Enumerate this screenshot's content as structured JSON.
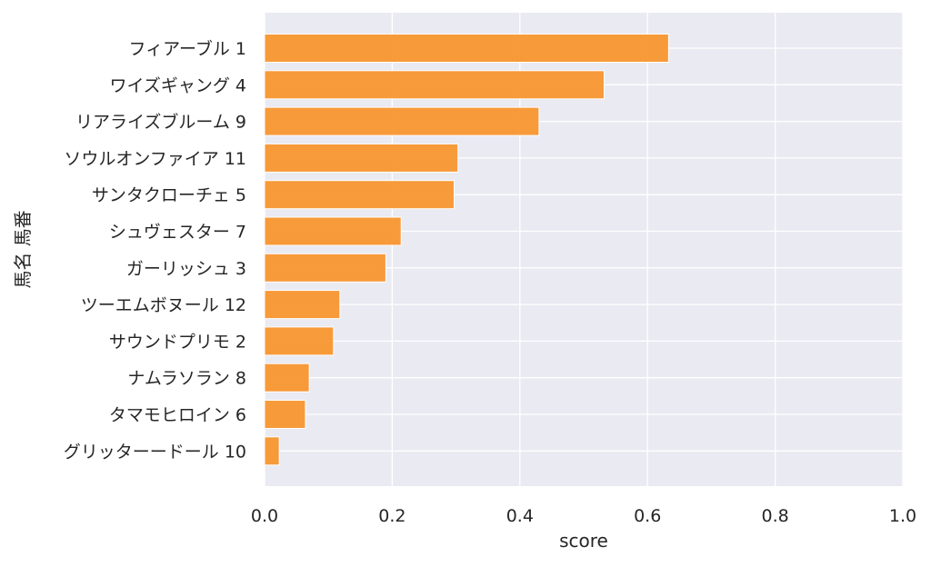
{
  "chart_data": {
    "type": "bar",
    "orientation": "horizontal",
    "categories": [
      "フィアーブル 1",
      "ワイズギャング 4",
      "リアライズブルーム 9",
      "ソウルオンファイア 11",
      "サンタクローチェ 5",
      "シュヴェスター 7",
      "ガーリッシュ 3",
      "ツーエムボヌール 12",
      "サウンドプリモ 2",
      "ナムラソラン 8",
      "タマモヒロイン 6",
      "グリッターードール 10"
    ],
    "values": [
      0.633,
      0.532,
      0.43,
      0.303,
      0.297,
      0.214,
      0.19,
      0.118,
      0.108,
      0.07,
      0.064,
      0.023
    ],
    "xlabel": "score",
    "ylabel": "馬名 馬番",
    "xlim": [
      0,
      1.0
    ],
    "xticks": [
      "0.0",
      "0.2",
      "0.4",
      "0.6",
      "0.8",
      "1.0"
    ],
    "grid": true,
    "bar_color": "#f7922a",
    "background_color": "#eaeaf2",
    "grid_color": "#ffffff"
  }
}
